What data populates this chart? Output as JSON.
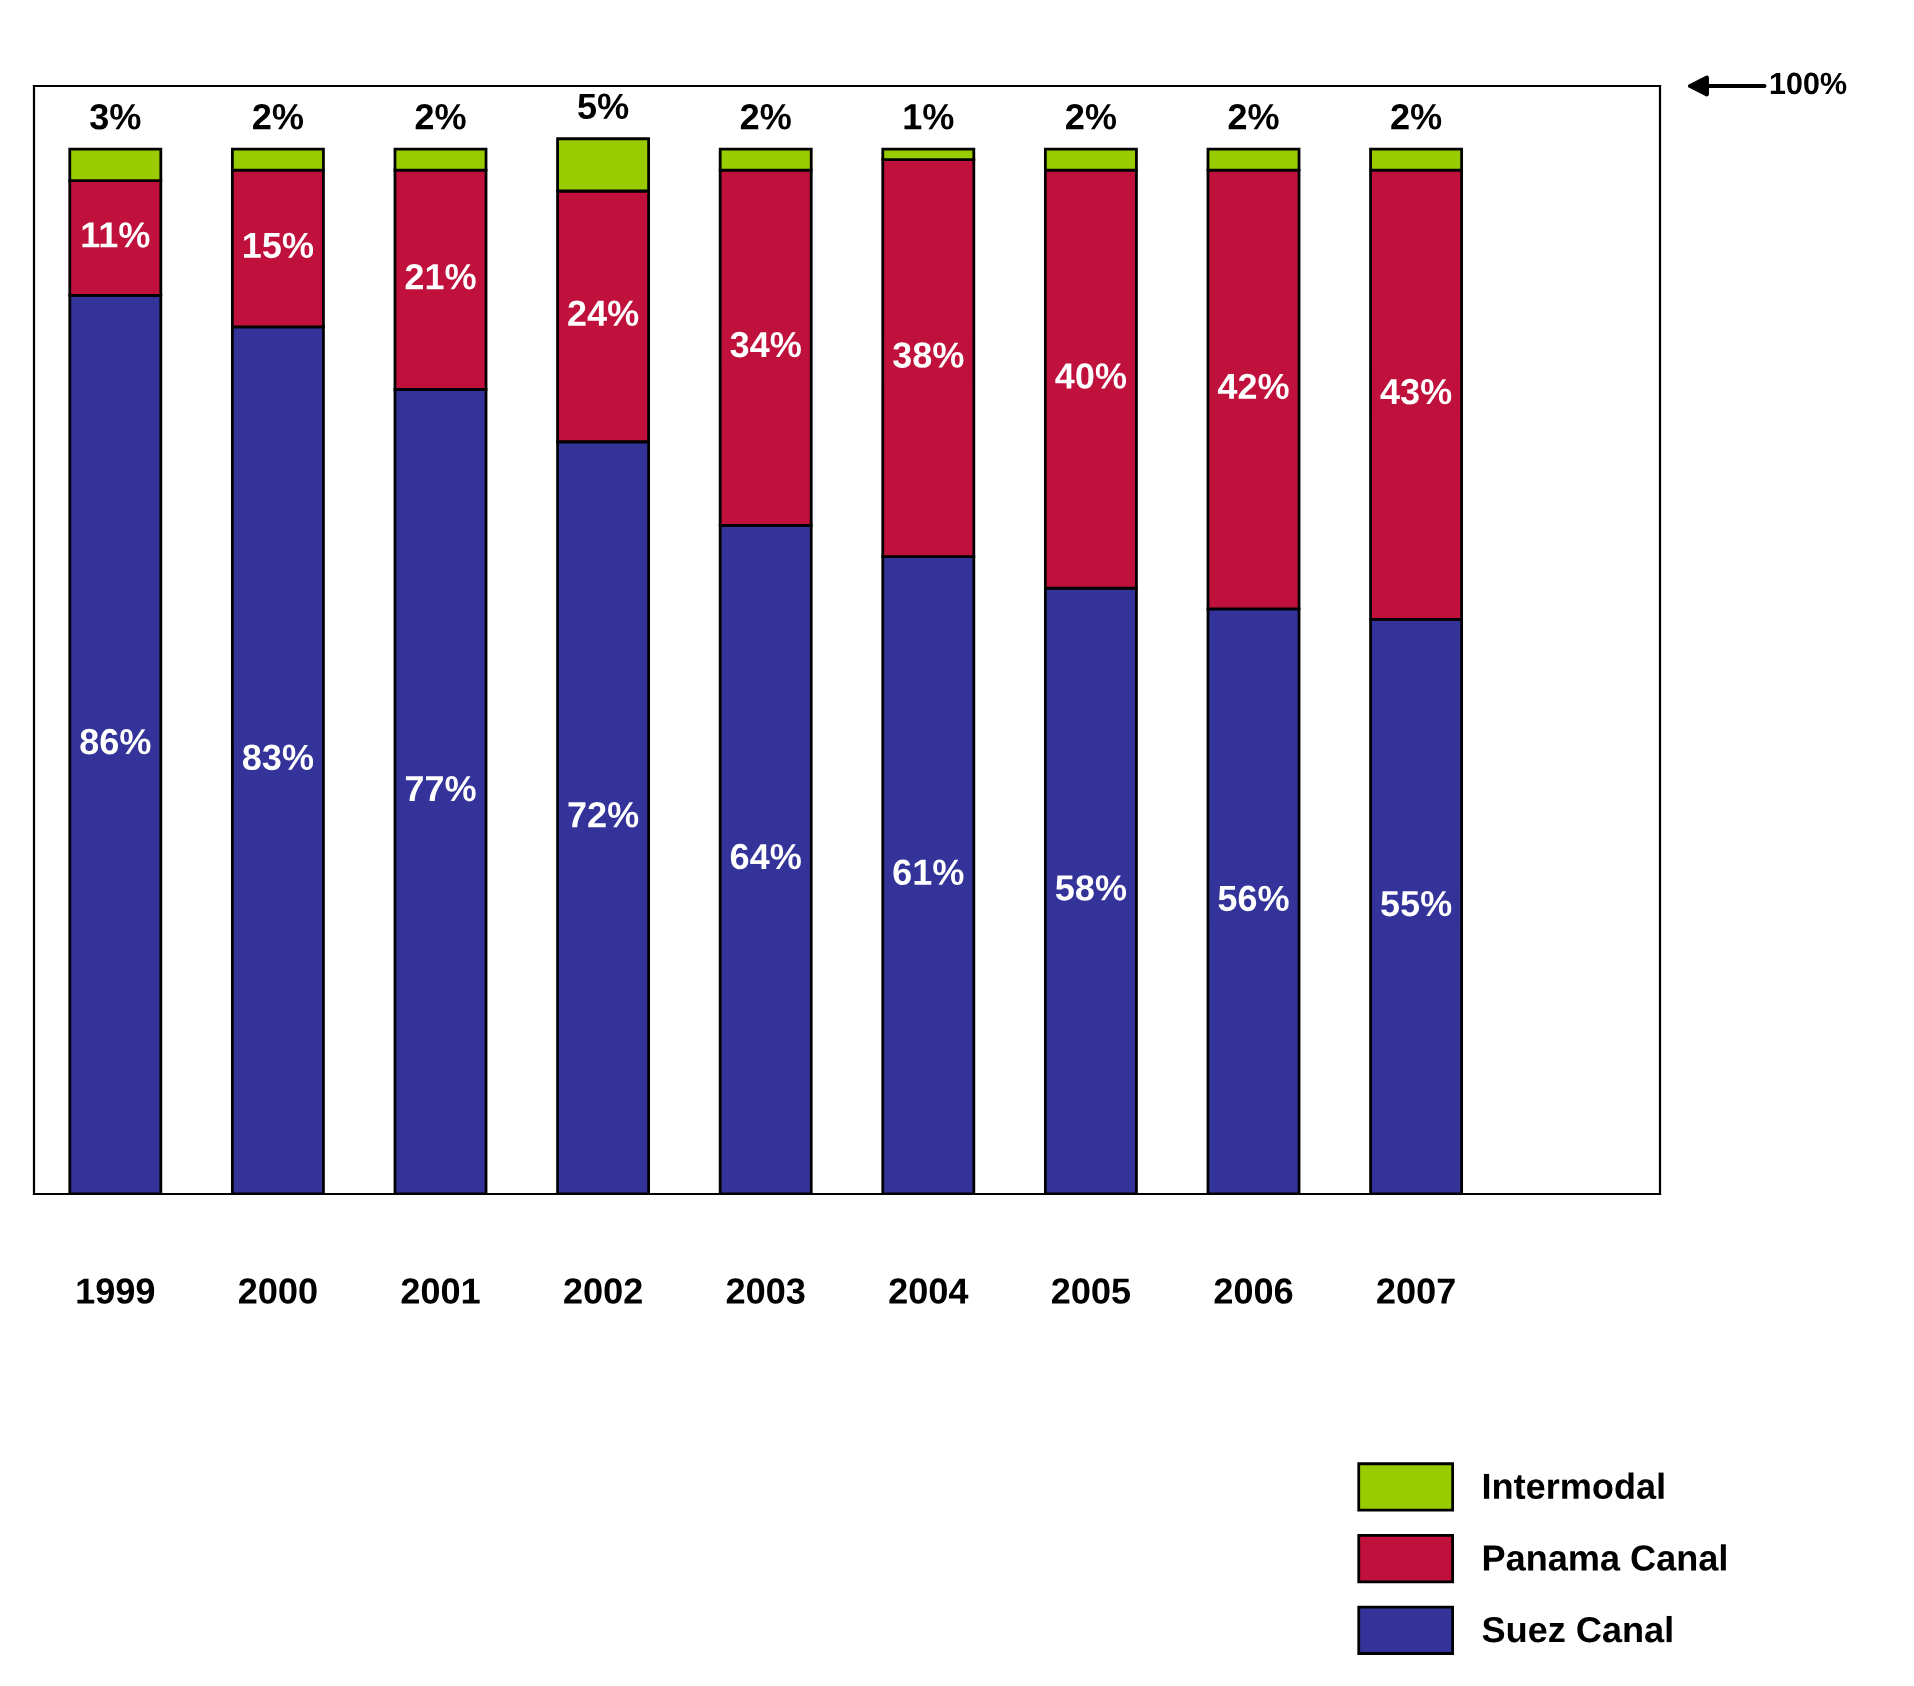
{
  "chart_data": {
    "type": "bar",
    "stacked": true,
    "categories": [
      "1999",
      "2000",
      "2001",
      "2002",
      "2003",
      "2004",
      "2005",
      "2006",
      "2007"
    ],
    "series": [
      {
        "name": "Suez Canal",
        "color": "#333399",
        "values": [
          86,
          83,
          77,
          72,
          64,
          61,
          58,
          56,
          55
        ],
        "value_labels": [
          "86%",
          "83%",
          "77%",
          "72%",
          "64%",
          "61%",
          "58%",
          "56%",
          "55%"
        ]
      },
      {
        "name": "Panama Canal",
        "color": "#c0103c",
        "values": [
          11,
          15,
          21,
          24,
          34,
          38,
          40,
          42,
          43
        ],
        "value_labels": [
          "11%",
          "15%",
          "21%",
          "24%",
          "34%",
          "38%",
          "40%",
          "42%",
          "43%"
        ]
      },
      {
        "name": "Intermodal",
        "color": "#99cc00",
        "values": [
          3,
          2,
          2,
          5,
          2,
          1,
          2,
          2,
          2
        ],
        "value_labels": [
          "3%",
          "2%",
          "2%",
          "5%",
          "2%",
          "1%",
          "2%",
          "2%",
          "2%"
        ]
      }
    ],
    "tick_labels": "x",
    "legend": "bottom right",
    "grid": false,
    "annotations": [
      "100%"
    ]
  }
}
